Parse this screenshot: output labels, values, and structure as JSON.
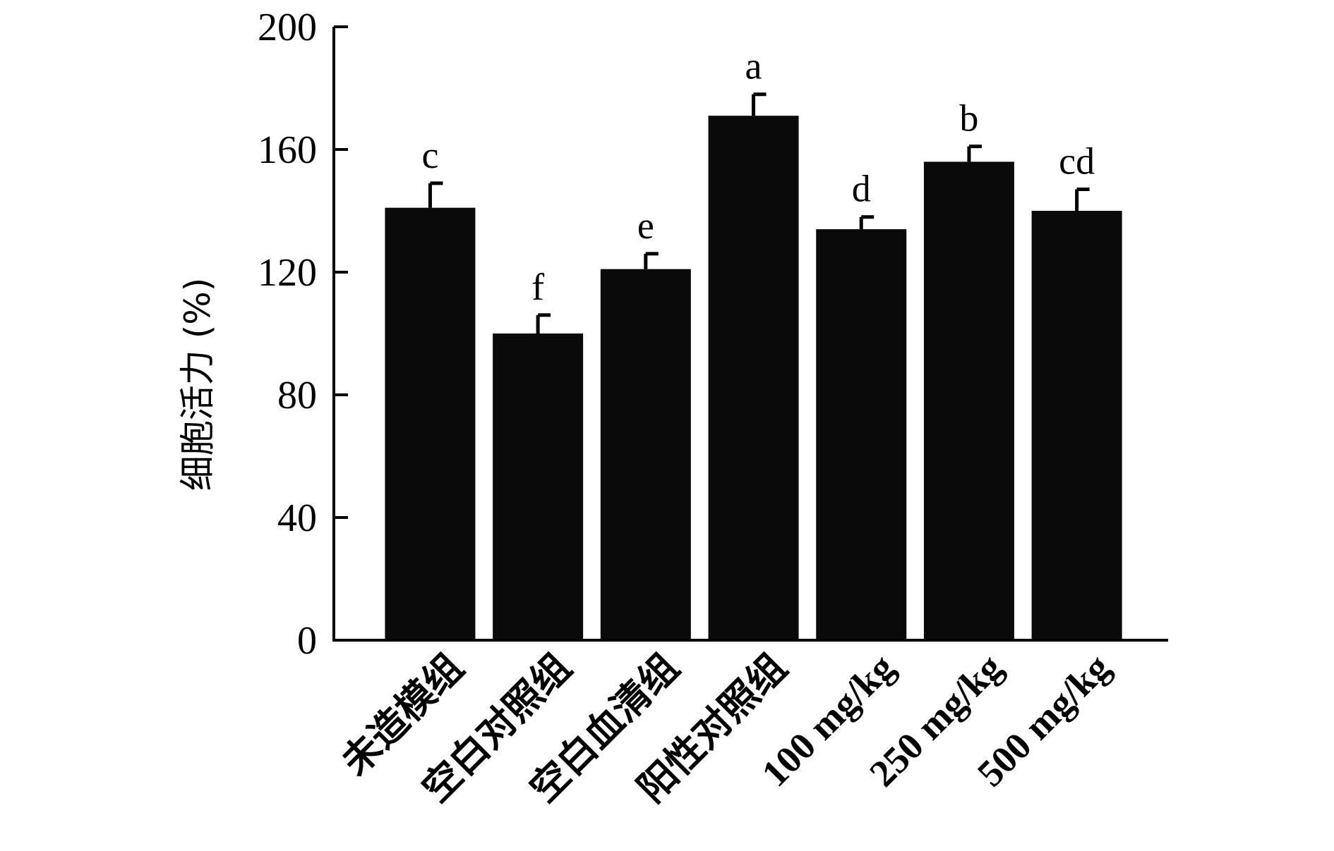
{
  "chart_data": {
    "type": "bar",
    "categories": [
      "未造模组",
      "空白对照组",
      "空白血清组",
      "阳性对照组",
      "100 mg/kg",
      "250 mg/kg",
      "500 mg/kg"
    ],
    "values": [
      141,
      100,
      121,
      171,
      134,
      156,
      140
    ],
    "errors": [
      8,
      6,
      5,
      7,
      4,
      5,
      7
    ],
    "significance": [
      "c",
      "f",
      "e",
      "a",
      "d",
      "b",
      "cd"
    ],
    "ylabel": "细胞活力 (%)",
    "xlabel": "",
    "ylim": [
      0,
      200
    ],
    "yticks": [
      0,
      40,
      80,
      120,
      160,
      200
    ],
    "grid": false,
    "bar_color": "#0a0a0a"
  }
}
